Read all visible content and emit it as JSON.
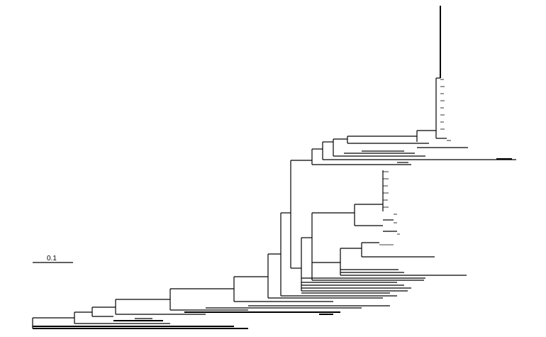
{
  "figure": {
    "type": "phylogenetic-tree",
    "style": "rectangular",
    "background": "#ffffff",
    "line_color": "#000000"
  },
  "scale_bar": {
    "label": "0.1",
    "value": 0.1
  }
}
